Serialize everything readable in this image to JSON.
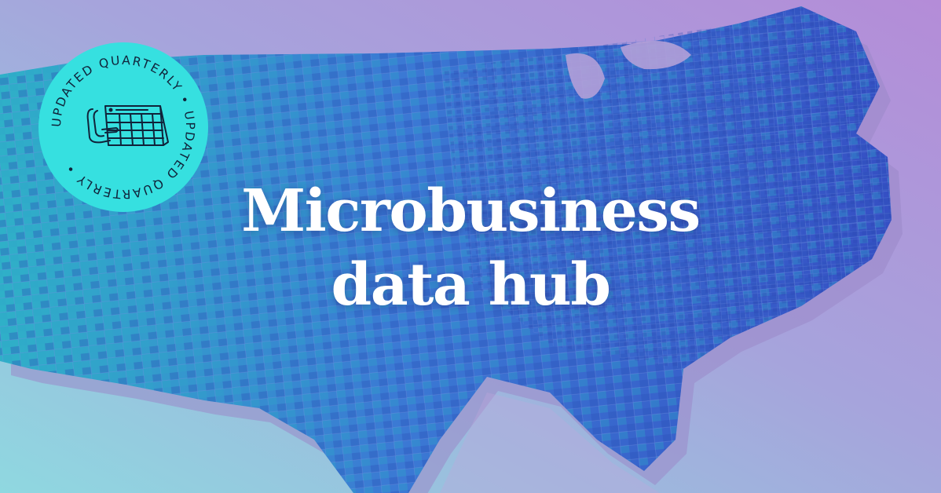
{
  "hero": {
    "title_line1": "Microbusiness",
    "title_line2": "data hub"
  },
  "badge": {
    "ring_text": "UPDATED QUARTERLY • UPDATED QUARTERLY • ",
    "icon": "calendar-icon",
    "color": "#36e0e0"
  },
  "colors": {
    "background_left": "#8fd8e0",
    "background_right": "#b48cd8",
    "map_blue": "#3f63d0",
    "map_teal": "#2fa7c8"
  }
}
